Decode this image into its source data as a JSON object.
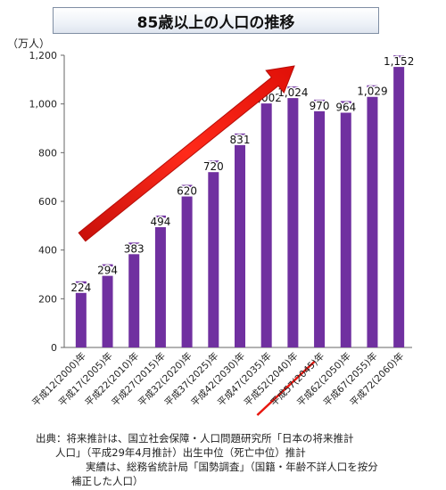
{
  "title": "85歳以上の人口の推移",
  "unit_label": "（万人）",
  "chart_data": {
    "type": "bar",
    "categories": [
      "平成12(2000)年",
      "平成17(2005)年",
      "平成22(2010)年",
      "平成27(2015)年",
      "平成32(2020)年",
      "平成37(2025)年",
      "平成42(2030)年",
      "平成47(2035)年",
      "平成52(2040)年",
      "平成57(2045)年",
      "平成62(2050)年",
      "平成67(2055)年",
      "平成72(2060)年"
    ],
    "values": [
      224,
      294,
      383,
      494,
      620,
      720,
      831,
      1002,
      1024,
      970,
      964,
      1029,
      1152
    ],
    "value_labels": [
      "224",
      "294",
      "383",
      "494",
      "620",
      "720",
      "831",
      "1,002",
      "1,024",
      "970",
      "964",
      "1,029",
      "1,152"
    ],
    "ylim": [
      0,
      1200
    ],
    "yticks": [
      0,
      200,
      400,
      600,
      800,
      1000,
      1200
    ],
    "ytick_labels": [
      "0",
      "200",
      "400",
      "600",
      "800",
      "1,000",
      "1,200"
    ],
    "grid": false,
    "bar_color": "#7030a0",
    "arrow_color": "#e8170f",
    "highlight_category": "平成52(2040)年"
  },
  "source": {
    "line1": "出典：将来推計は、国立社会保障・人口問題研究所「日本の将来推計",
    "line2": "人口」（平成29年4月推計）出生中位（死亡中位）推計",
    "line3": "実績は、総務省統計局「国勢調査」（国籍・年齢不詳人口を按分",
    "line4": "補正した人口）"
  }
}
